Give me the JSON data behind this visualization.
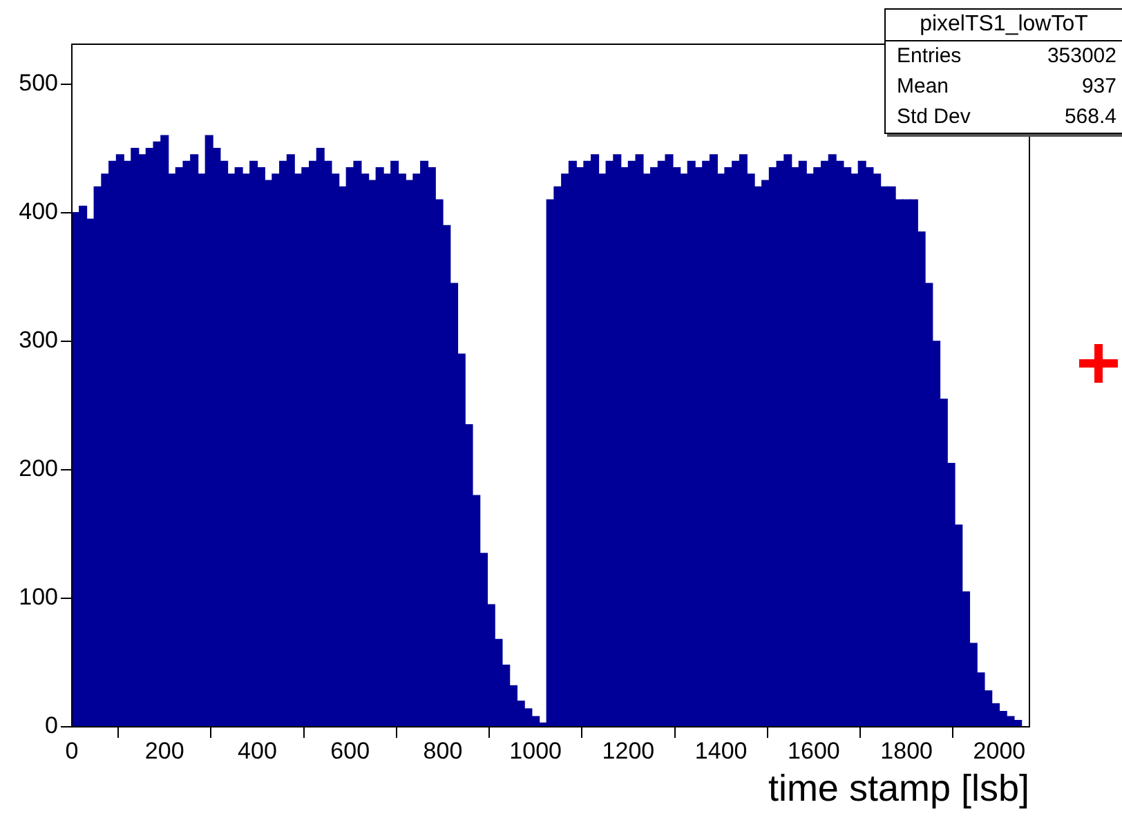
{
  "chart_data": {
    "type": "histogram",
    "xlabel": "time stamp [lsb]",
    "bins": [
      0,
      16,
      32,
      48,
      64,
      80,
      96,
      112,
      128,
      144,
      160,
      176,
      192,
      208,
      224,
      240,
      256,
      272,
      288,
      304,
      320,
      336,
      352,
      368,
      384,
      400,
      416,
      432,
      448,
      464,
      480,
      496,
      512,
      528,
      544,
      560,
      576,
      592,
      608,
      624,
      640,
      656,
      672,
      688,
      704,
      720,
      736,
      752,
      768,
      784,
      800,
      816,
      832,
      848,
      864,
      880,
      896,
      912,
      928,
      944,
      960,
      976,
      992,
      1008,
      1024,
      1040,
      1056,
      1072,
      1088,
      1104,
      1120,
      1136,
      1152,
      1168,
      1184,
      1200,
      1216,
      1232,
      1248,
      1264,
      1280,
      1296,
      1312,
      1328,
      1344,
      1360,
      1376,
      1392,
      1408,
      1424,
      1440,
      1456,
      1472,
      1488,
      1504,
      1520,
      1536,
      1552,
      1568,
      1584,
      1600,
      1616,
      1632,
      1648,
      1664,
      1680,
      1696,
      1712,
      1728,
      1744,
      1760,
      1776,
      1792,
      1808,
      1824,
      1840,
      1856,
      1872,
      1888,
      1904,
      1920,
      1936,
      1952,
      1968,
      1984,
      2000,
      2016,
      2032,
      2048
    ],
    "values": [
      400,
      405,
      395,
      420,
      430,
      440,
      445,
      440,
      450,
      445,
      450,
      455,
      460,
      430,
      435,
      440,
      445,
      430,
      460,
      450,
      440,
      430,
      435,
      430,
      440,
      435,
      425,
      430,
      440,
      445,
      430,
      435,
      440,
      450,
      440,
      430,
      420,
      435,
      440,
      430,
      425,
      435,
      430,
      440,
      430,
      425,
      430,
      440,
      435,
      410,
      390,
      345,
      290,
      235,
      180,
      135,
      95,
      68,
      48,
      32,
      20,
      14,
      8,
      3,
      410,
      420,
      430,
      440,
      435,
      440,
      445,
      430,
      440,
      445,
      435,
      440,
      445,
      430,
      435,
      440,
      445,
      435,
      430,
      440,
      435,
      440,
      445,
      430,
      435,
      440,
      445,
      430,
      420,
      425,
      435,
      440,
      445,
      435,
      440,
      430,
      435,
      440,
      445,
      440,
      435,
      430,
      440,
      435,
      430,
      420,
      420,
      410,
      410,
      410,
      385,
      345,
      300,
      255,
      205,
      157,
      105,
      65,
      42,
      28,
      18,
      12,
      8,
      5
    ],
    "color": "#000099",
    "xlim": [
      0,
      2065
    ],
    "ylim": [
      0,
      531
    ],
    "xticks": [
      0,
      200,
      400,
      600,
      800,
      1000,
      1200,
      1400,
      1600,
      1800,
      2000
    ],
    "yticks": [
      0,
      100,
      200,
      300,
      400,
      500
    ],
    "grid": false,
    "annotations": [
      "pixelTS1_lowToT",
      "Entries",
      "353002",
      "Mean",
      "937",
      "Std Dev",
      "568.4"
    ]
  }
}
